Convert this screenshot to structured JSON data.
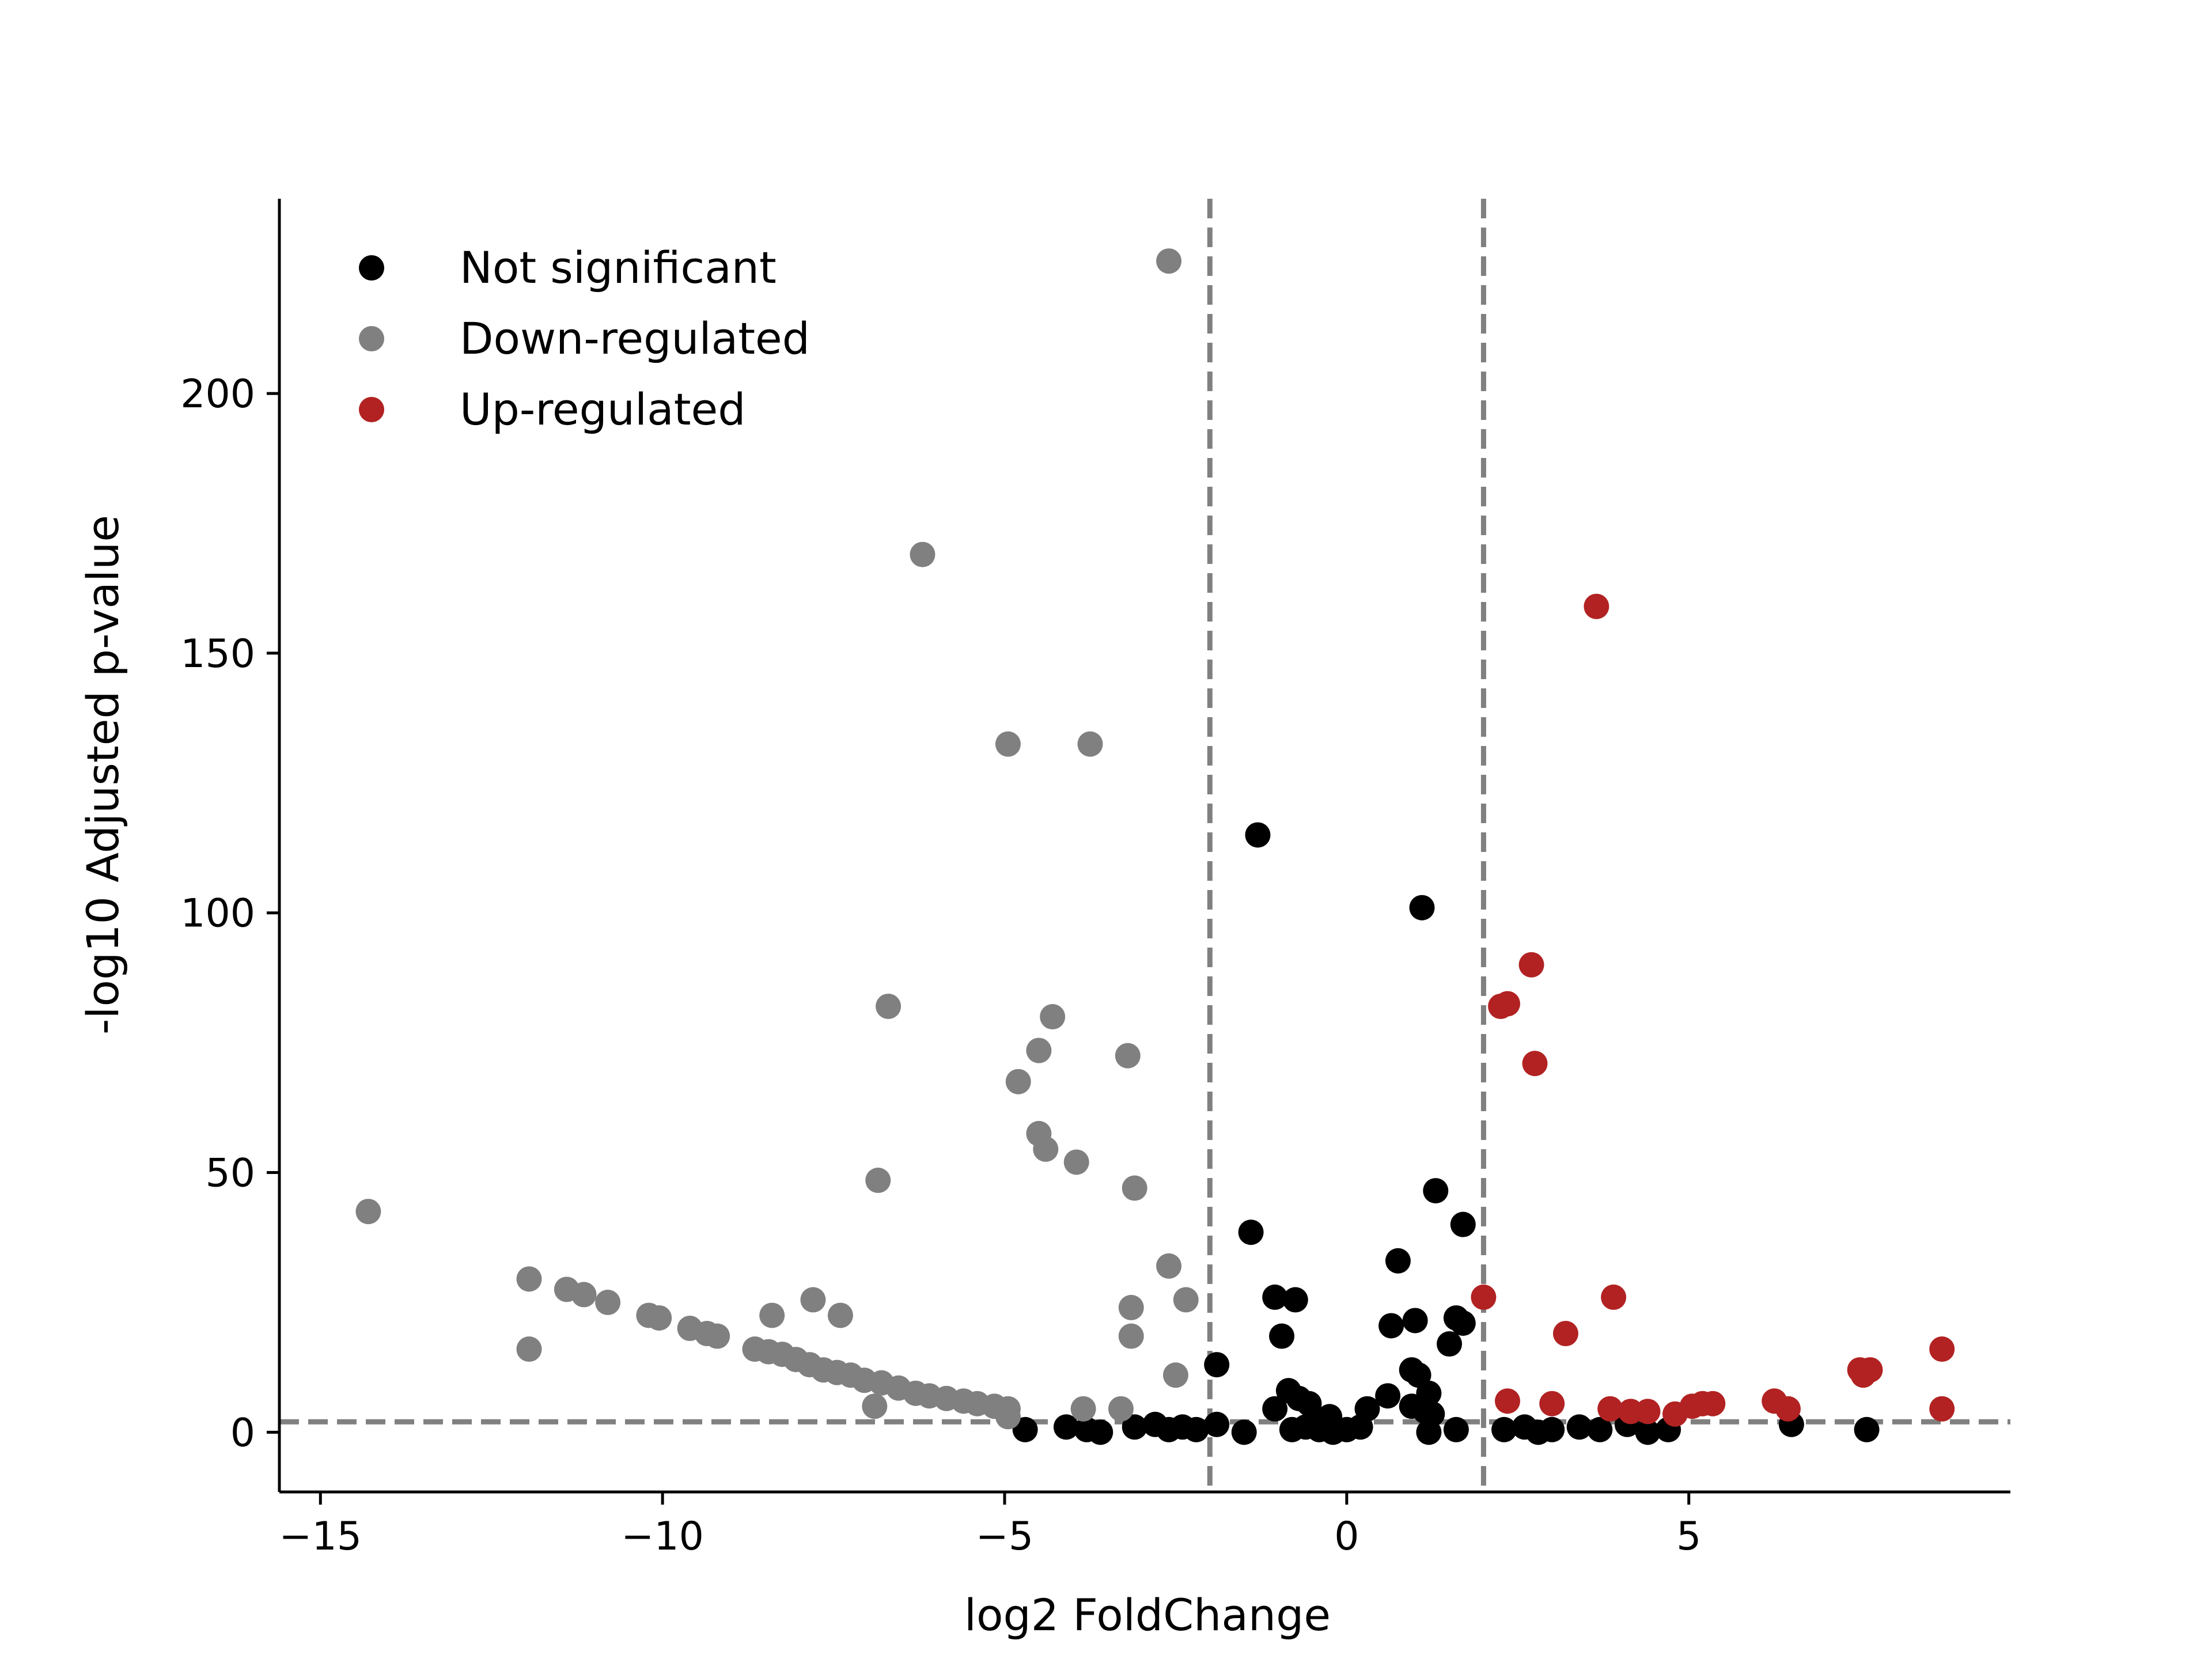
{
  "chart_data": {
    "type": "scatter",
    "title": "",
    "xlabel": "log2 FoldChange",
    "ylabel": "-log10 Adjusted p-value",
    "xlim": [
      -15.6,
      9.7
    ],
    "ylim": [
      -11.5,
      237.5
    ],
    "xticks": [
      -15,
      -10,
      -5,
      0,
      5
    ],
    "xtick_labels": [
      "−15",
      "−10",
      "−5",
      "0",
      "5"
    ],
    "yticks": [
      0,
      50,
      100,
      150,
      200
    ],
    "ytick_labels": [
      "0",
      "50",
      "100",
      "150",
      "200"
    ],
    "grid": false,
    "legend": "top-left",
    "thresholds": {
      "fc_low": -2,
      "fc_high": 2,
      "padj_line": 2
    },
    "threshold_color": "#808080",
    "series": [
      {
        "name": "Not significant",
        "color": "#000000",
        "points": [
          [
            -1.3,
            115
          ],
          [
            1.1,
            101
          ],
          [
            -1.4,
            38.5
          ],
          [
            1.3,
            46.5
          ],
          [
            1.7,
            40
          ],
          [
            0.75,
            33
          ],
          [
            -1.05,
            26
          ],
          [
            -0.75,
            25.5
          ],
          [
            -0.95,
            18.5
          ],
          [
            0.65,
            20.5
          ],
          [
            1.0,
            21.5
          ],
          [
            1.6,
            22
          ],
          [
            1.7,
            21
          ],
          [
            1.5,
            17
          ],
          [
            -1.9,
            13
          ],
          [
            0.95,
            12
          ],
          [
            1.05,
            11
          ],
          [
            1.2,
            7.5
          ],
          [
            0.6,
            7
          ],
          [
            -0.85,
            8
          ],
          [
            -0.7,
            6.5
          ],
          [
            -1.05,
            4.5
          ],
          [
            -0.55,
            5.5
          ],
          [
            -0.45,
            2.5
          ],
          [
            -0.25,
            3
          ],
          [
            0.3,
            4.5
          ],
          [
            0.95,
            5
          ],
          [
            1.15,
            4
          ],
          [
            1.25,
            3.5
          ],
          [
            -4.7,
            0.5
          ],
          [
            -4.1,
            1
          ],
          [
            -3.8,
            0.5
          ],
          [
            -3.6,
            0
          ],
          [
            -3.1,
            1
          ],
          [
            -2.8,
            1.5
          ],
          [
            -2.6,
            0.5
          ],
          [
            -2.4,
            1
          ],
          [
            -2.2,
            0.5
          ],
          [
            -1.9,
            1.5
          ],
          [
            -1.5,
            0
          ],
          [
            -0.8,
            0.5
          ],
          [
            -0.6,
            1
          ],
          [
            -0.4,
            0.5
          ],
          [
            -0.2,
            0
          ],
          [
            0,
            0.5
          ],
          [
            0.2,
            1
          ],
          [
            1.2,
            0
          ],
          [
            1.6,
            0.5
          ],
          [
            2.3,
            0.5
          ],
          [
            2.6,
            1
          ],
          [
            2.8,
            0
          ],
          [
            3.0,
            0.5
          ],
          [
            3.4,
            1
          ],
          [
            3.7,
            0.5
          ],
          [
            4.1,
            1.5
          ],
          [
            4.4,
            0
          ],
          [
            4.7,
            0.5
          ],
          [
            6.5,
            1.5
          ],
          [
            7.6,
            0.5
          ]
        ]
      },
      {
        "name": "Down-regulated",
        "color": "#808080",
        "points": [
          [
            -2.6,
            225.5
          ],
          [
            -6.2,
            169
          ],
          [
            -4.95,
            132.5
          ],
          [
            -3.75,
            132.5
          ],
          [
            -6.7,
            82
          ],
          [
            -4.3,
            80
          ],
          [
            -4.5,
            73.5
          ],
          [
            -3.2,
            72.5
          ],
          [
            -4.8,
            67.5
          ],
          [
            -4.5,
            57.5
          ],
          [
            -4.4,
            54.5
          ],
          [
            -3.95,
            52
          ],
          [
            -6.85,
            48.5
          ],
          [
            -3.1,
            47
          ],
          [
            -14.3,
            42.5
          ],
          [
            -11.95,
            29.5
          ],
          [
            -11.4,
            27.5
          ],
          [
            -11.15,
            26.5
          ],
          [
            -10.8,
            25
          ],
          [
            -10.2,
            22.5
          ],
          [
            -10.05,
            22
          ],
          [
            -9.6,
            20
          ],
          [
            -9.35,
            19
          ],
          [
            -9.2,
            18.5
          ],
          [
            -8.65,
            16
          ],
          [
            -8.45,
            15.5
          ],
          [
            -8.25,
            15
          ],
          [
            -8.05,
            14
          ],
          [
            -7.85,
            13
          ],
          [
            -7.65,
            12
          ],
          [
            -7.45,
            11.5
          ],
          [
            -7.25,
            11
          ],
          [
            -7.05,
            10
          ],
          [
            -6.8,
            9.5
          ],
          [
            -6.55,
            8.5
          ],
          [
            -6.3,
            7.5
          ],
          [
            -6.1,
            7
          ],
          [
            -5.85,
            6.5
          ],
          [
            -5.6,
            6
          ],
          [
            -5.4,
            5.5
          ],
          [
            -5.15,
            5
          ],
          [
            -4.95,
            4.5
          ],
          [
            -11.95,
            16
          ],
          [
            -8.4,
            22.5
          ],
          [
            -7.8,
            25.5
          ],
          [
            -7.4,
            22.5
          ],
          [
            -6.9,
            5
          ],
          [
            -2.6,
            32
          ],
          [
            -2.35,
            25.5
          ],
          [
            -3.15,
            24
          ],
          [
            -3.15,
            18.5
          ],
          [
            -2.5,
            11
          ],
          [
            -3.3,
            4.5
          ],
          [
            -3.85,
            4.5
          ],
          [
            -4.95,
            3
          ]
        ]
      },
      {
        "name": "Up-regulated",
        "color": "#b22222",
        "points": [
          [
            3.65,
            159
          ],
          [
            2.7,
            90
          ],
          [
            2.25,
            82
          ],
          [
            2.35,
            82.5
          ],
          [
            2.75,
            71
          ],
          [
            2.0,
            26
          ],
          [
            3.9,
            26
          ],
          [
            3.2,
            19
          ],
          [
            8.7,
            16
          ],
          [
            7.5,
            12
          ],
          [
            7.65,
            12
          ],
          [
            7.55,
            11
          ],
          [
            2.35,
            6
          ],
          [
            3.0,
            5.5
          ],
          [
            3.85,
            4.5
          ],
          [
            4.15,
            4
          ],
          [
            4.4,
            4
          ],
          [
            4.8,
            3.5
          ],
          [
            5.05,
            5
          ],
          [
            5.2,
            5.5
          ],
          [
            5.35,
            5.5
          ],
          [
            6.25,
            6
          ],
          [
            6.45,
            4.5
          ],
          [
            8.7,
            4.5
          ]
        ]
      }
    ]
  }
}
